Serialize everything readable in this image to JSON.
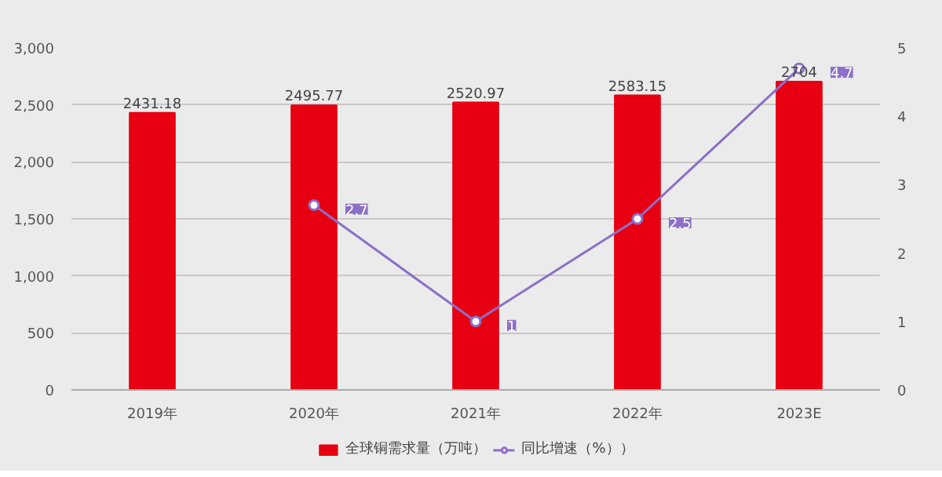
{
  "chart_data": {
    "type": "bar",
    "categories": [
      "2019年",
      "2020年",
      "2021年",
      "2022年",
      "2023E"
    ],
    "ylim": [
      0,
      3000
    ],
    "yticks": [
      0,
      500,
      {
        "value": 1000,
        "label": "1,000"
      },
      {
        "value": 1500,
        "label": "1,500"
      },
      {
        "value": 2000,
        "label": "2,000"
      },
      {
        "value": 2500,
        "label": "2,500"
      },
      {
        "value": 3000,
        "label": "3,000"
      }
    ],
    "y2lim": [
      0,
      5
    ],
    "y2ticks": [
      0,
      1,
      2,
      3,
      4,
      5
    ],
    "grid": "y",
    "legend": "bottom",
    "marker": "circle",
    "series": [
      {
        "name": "全球铜需求量（万吨）",
        "color": "#e60012",
        "values": [
          2431.18,
          2495.77,
          2520.97,
          2583.15,
          2704
        ],
        "value_labels": [
          "2431.18",
          "2495.77",
          "2520.97",
          "2583.15",
          "2704"
        ]
      },
      {
        "name": "同比增速（%））",
        "type": "line",
        "axis": "y2",
        "color": "#8c6fc6",
        "values": [
          null,
          2.7,
          1,
          2.5,
          4.7
        ],
        "value_labels": [
          null,
          "2.7",
          "1",
          "2.5",
          "4.7"
        ]
      }
    ]
  }
}
